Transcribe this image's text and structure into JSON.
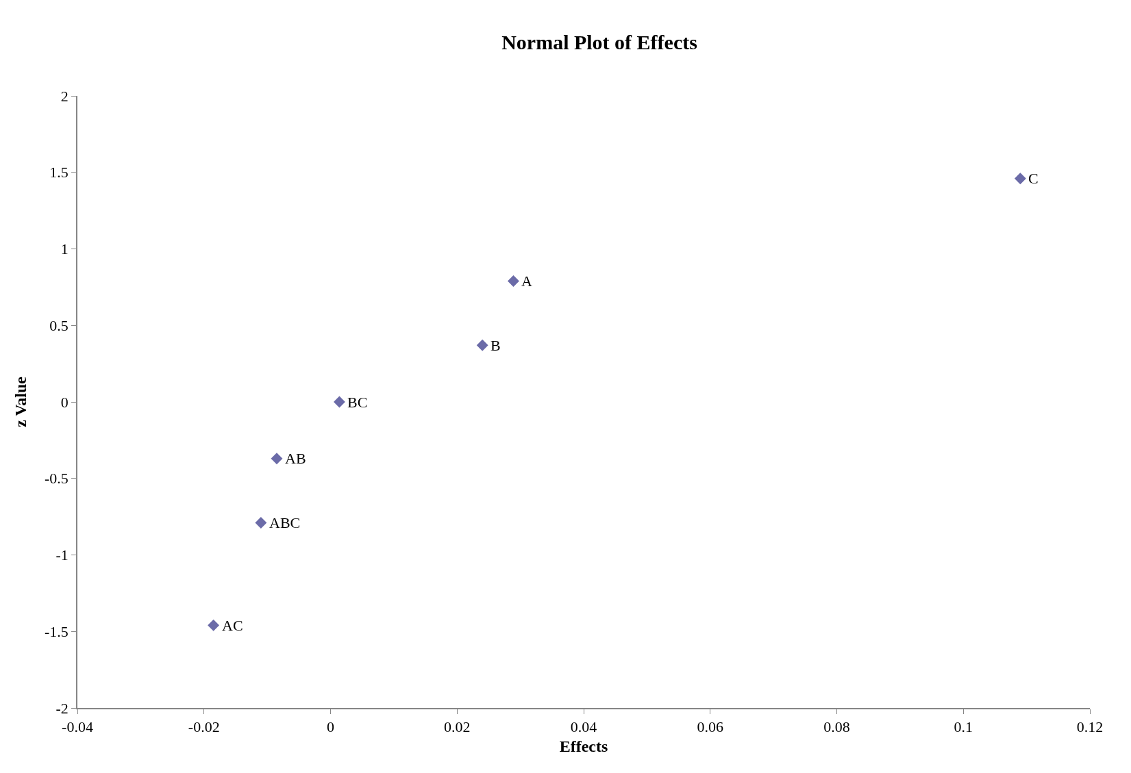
{
  "chart_data": {
    "type": "scatter",
    "title": "Normal Plot of Effects",
    "xlabel": "Effects",
    "ylabel": "z Value",
    "x": [
      0.0289,
      0.024,
      0.109,
      -0.0085,
      -0.0185,
      0.0014,
      -0.011
    ],
    "values": [
      0.79,
      0.37,
      1.46,
      -0.37,
      -1.46,
      0,
      -0.79
    ],
    "color": "#6b6ba8",
    "marker": "diamond",
    "annotations": [
      {
        "text": "A",
        "x": 0.0289,
        "y": 0.79
      },
      {
        "text": "B",
        "x": 0.024,
        "y": 0.37
      },
      {
        "text": "C",
        "x": 0.109,
        "y": 1.46
      },
      {
        "text": "AB",
        "x": -0.0085,
        "y": -0.37
      },
      {
        "text": "AC",
        "x": -0.0185,
        "y": -1.46
      },
      {
        "text": "BC",
        "x": 0.0014,
        "y": 0
      },
      {
        "text": "ABC",
        "x": -0.011,
        "y": -0.79
      }
    ],
    "xlim": [
      -0.04,
      0.12
    ],
    "xticks": [
      -0.04,
      -0.02,
      0,
      0.02,
      0.04,
      0.06,
      0.08,
      0.1,
      0.12
    ],
    "ylim": [
      -2,
      2
    ],
    "yticks": [
      -2,
      -1.5,
      -1,
      -0.5,
      0,
      0.5,
      1,
      1.5,
      2
    ]
  }
}
